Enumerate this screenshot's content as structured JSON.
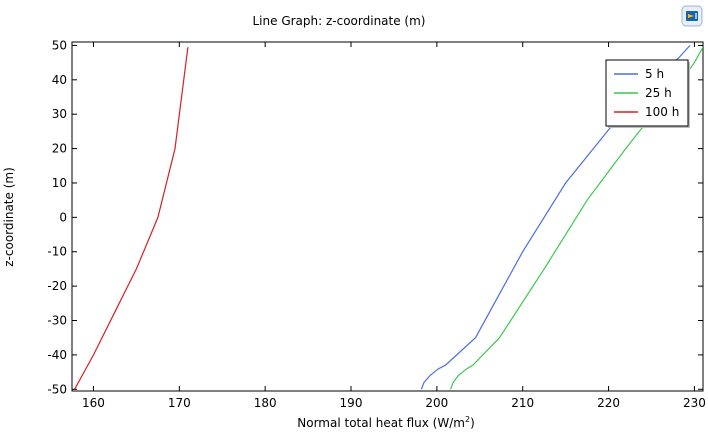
{
  "chart_data": {
    "type": "line",
    "title": "Line Graph: z-coordinate (m)",
    "xlabel": "Normal total heat flux (W/m",
    "xlabel_sup": "2",
    "xlabel_tail": ")",
    "ylabel": "z-coordinate (m)",
    "xlim": [
      157.5,
      231
    ],
    "ylim": [
      -50.5,
      51
    ],
    "xticks": [
      160,
      170,
      180,
      190,
      200,
      210,
      220,
      230
    ],
    "yticks": [
      -50,
      -40,
      -30,
      -20,
      -10,
      0,
      10,
      20,
      30,
      40,
      50
    ],
    "legend_position": "top-right",
    "series": [
      {
        "name": "5 h",
        "color": "#4a6fe3",
        "points": [
          [
            198.2,
            -50
          ],
          [
            198.5,
            -48
          ],
          [
            199.2,
            -46
          ],
          [
            200.2,
            -44
          ],
          [
            201,
            -43
          ],
          [
            204.5,
            -35
          ],
          [
            210,
            -10
          ],
          [
            215,
            10
          ],
          [
            220,
            25.5
          ],
          [
            223,
            34
          ],
          [
            226,
            41.5
          ],
          [
            228.2,
            46.5
          ],
          [
            229.5,
            50
          ]
        ]
      },
      {
        "name": "25 h",
        "color": "#3fc64f",
        "points": [
          [
            201.6,
            -50
          ],
          [
            201.9,
            -48
          ],
          [
            202.5,
            -46
          ],
          [
            203.5,
            -44
          ],
          [
            204.2,
            -43
          ],
          [
            207.3,
            -35
          ],
          [
            212.5,
            -15
          ],
          [
            217.5,
            5
          ],
          [
            222,
            20
          ],
          [
            225,
            29.5
          ],
          [
            228,
            38
          ],
          [
            230,
            45
          ],
          [
            231,
            49.5
          ]
        ]
      },
      {
        "name": "100 h",
        "color": "#d42020",
        "points": [
          [
            157.8,
            -50
          ],
          [
            160,
            -40
          ],
          [
            163,
            -25
          ],
          [
            165,
            -15
          ],
          [
            167.5,
            0
          ],
          [
            169.5,
            20
          ],
          [
            171,
            49.5
          ]
        ]
      }
    ]
  },
  "toolbar": {
    "icon_name": "comsol-logo-icon"
  }
}
